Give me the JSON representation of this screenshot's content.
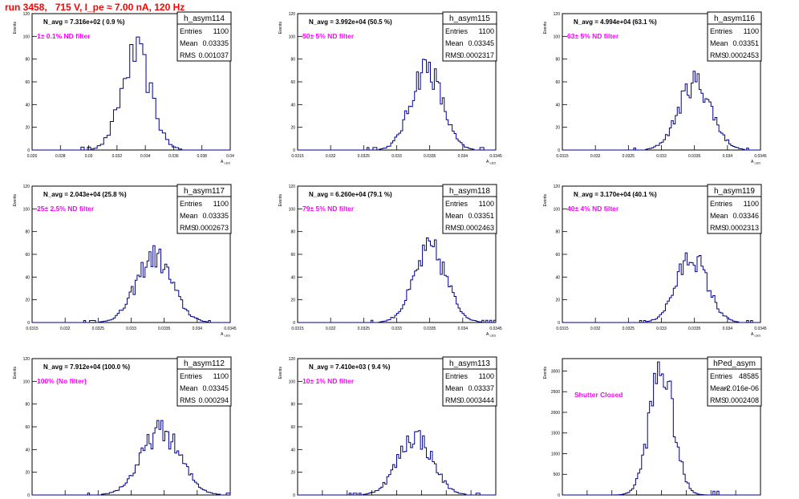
{
  "page_title": "run 3458,   715 V, I_pe ≈ 7.00 nA, 120 Hz",
  "colors": {
    "histogram": "#00008b",
    "label": "#ff00ff",
    "title": "#ff0000",
    "frame": "#000000"
  },
  "chart_data": [
    {
      "type": "histogram",
      "name": "h_asym114",
      "entries": "1100",
      "mean": "0.03335",
      "rms": "0.001037",
      "navg": "N_avg = 7.316e+02 ( 0.9 %)",
      "label": "1± 0.1% ND filter",
      "ylabel": "Events",
      "xlabel": "A_LED",
      "xlim": [
        0.026,
        0.04
      ],
      "ylim": [
        0,
        120
      ],
      "xticks": [
        "0.026",
        "0.028",
        "0.03",
        "0.032",
        "0.034",
        "0.036",
        "0.038",
        "0.04"
      ],
      "yticks": [
        "0",
        "20",
        "40",
        "60",
        "80",
        "100",
        "120"
      ],
      "bin_width": 0.00023,
      "mu": 0.03335,
      "sigma": 0.001037,
      "peak": 84
    },
    {
      "type": "histogram",
      "name": "h_asym115",
      "entries": "1100",
      "mean": "0.03345",
      "rms": "0.0002317",
      "navg": "N_avg = 3.992e+04 (50.5 %)",
      "label": "50± 5% ND filter",
      "ylabel": "Events",
      "xlabel": "A_LED",
      "xlim": [
        0.0315,
        0.0345
      ],
      "ylim": [
        0,
        120
      ],
      "xticks": [
        "0.0315",
        "0.032",
        "0.0325",
        "0.033",
        "0.0335",
        "0.034",
        "0.0345"
      ],
      "yticks": [
        "0",
        "20",
        "40",
        "60",
        "80",
        "100",
        "120"
      ],
      "bin_width": 3e-05,
      "mu": 0.03345,
      "sigma": 0.0002317,
      "peak": 73
    },
    {
      "type": "histogram",
      "name": "h_asym116",
      "entries": "1100",
      "mean": "0.03351",
      "rms": "0.0002453",
      "navg": "N_avg = 4.994e+04 (63.1 %)",
      "label": "63± 5% ND filter",
      "ylabel": "Events",
      "xlabel": "A_LED",
      "xlim": [
        0.0315,
        0.0345
      ],
      "ylim": [
        0,
        120
      ],
      "xticks": [
        "0.0315",
        "0.032",
        "0.0325",
        "0.033",
        "0.0335",
        "0.034",
        "0.0345"
      ],
      "yticks": [
        "0",
        "20",
        "40",
        "60",
        "80",
        "100",
        "120"
      ],
      "bin_width": 3e-05,
      "mu": 0.03351,
      "sigma": 0.0002453,
      "peak": 60
    },
    {
      "type": "histogram",
      "name": "h_asym117",
      "entries": "1100",
      "mean": "0.03335",
      "rms": "0.0002673",
      "navg": "N_avg = 2.043e+04 (25.8 %)",
      "label": "25± 2.5% ND filter",
      "ylabel": "Events",
      "xlabel": "A_LED",
      "xlim": [
        0.0315,
        0.0345
      ],
      "ylim": [
        0,
        120
      ],
      "xticks": [
        "0.0315",
        "0.032",
        "0.0325",
        "0.033",
        "0.0335",
        "0.034",
        "0.0345"
      ],
      "yticks": [
        "0",
        "20",
        "40",
        "60",
        "80",
        "100",
        "120"
      ],
      "bin_width": 3e-05,
      "mu": 0.03335,
      "sigma": 0.0002673,
      "peak": 58
    },
    {
      "type": "histogram",
      "name": "h_asym118",
      "entries": "1100",
      "mean": "0.03351",
      "rms": "0.0002463",
      "navg": "N_avg = 6.260e+04 (79.1 %)",
      "label": "79± 5% ND filter",
      "ylabel": "Events",
      "xlabel": "A_LED",
      "xlim": [
        0.0315,
        0.0345
      ],
      "ylim": [
        0,
        120
      ],
      "xticks": [
        "0.0315",
        "0.032",
        "0.0325",
        "0.033",
        "0.0335",
        "0.034",
        "0.0345"
      ],
      "yticks": [
        "0",
        "20",
        "40",
        "60",
        "80",
        "100",
        "120"
      ],
      "bin_width": 3e-05,
      "mu": 0.03351,
      "sigma": 0.0002463,
      "peak": 64
    },
    {
      "type": "histogram",
      "name": "h_asym119",
      "entries": "1100",
      "mean": "0.03346",
      "rms": "0.0002313",
      "navg": "N_avg = 3.170e+04 (40.1 %)",
      "label": "40± 4% ND filter",
      "ylabel": "Events",
      "xlabel": "A_LED",
      "xlim": [
        0.0315,
        0.0345
      ],
      "ylim": [
        0,
        120
      ],
      "xticks": [
        "0.0315",
        "0.032",
        "0.0325",
        "0.033",
        "0.0335",
        "0.034",
        "0.0345"
      ],
      "yticks": [
        "0",
        "20",
        "40",
        "60",
        "80",
        "100",
        "120"
      ],
      "bin_width": 3e-05,
      "mu": 0.03346,
      "sigma": 0.0002313,
      "peak": 58
    },
    {
      "type": "histogram",
      "name": "h_asym112",
      "entries": "1100",
      "mean": "0.03345",
      "rms": "0.000294",
      "navg": "N_avg = 7.912e+04 (100.0 %)",
      "label": "100% (No filter)",
      "ylabel": "Events",
      "xlabel": "A_LED",
      "xlim": [
        0.0315,
        0.0345
      ],
      "ylim": [
        0,
        120
      ],
      "xticks": [
        "0.0315",
        "0.032",
        "0.0325",
        "0.033",
        "0.0335",
        "0.034",
        "0.0345"
      ],
      "yticks": [
        "0",
        "20",
        "40",
        "60",
        "80",
        "100",
        "120"
      ],
      "bin_width": 3e-05,
      "mu": 0.03345,
      "sigma": 0.000294,
      "peak": 56
    },
    {
      "type": "histogram",
      "name": "h_asym113",
      "entries": "1100",
      "mean": "0.03337",
      "rms": "0.0003444",
      "navg": "N_avg = 7.410e+03 ( 9.4 %)",
      "label": "10± 1% ND filter",
      "ylabel": "Events",
      "xlabel": "A_LED",
      "xlim": [
        0.031,
        0.035
      ],
      "ylim": [
        0,
        120
      ],
      "xticks": [
        "0.031",
        "0.0315",
        "0.032",
        "0.0325",
        "0.033",
        "0.0335",
        "0.034",
        "0.0345",
        "0.035"
      ],
      "yticks": [
        "0",
        "20",
        "40",
        "60",
        "80",
        "100",
        "120"
      ],
      "bin_width": 4e-05,
      "mu": 0.03337,
      "sigma": 0.0003444,
      "peak": 52
    },
    {
      "type": "histogram",
      "name": "hPed_asym",
      "entries": "48585",
      "mean": "-2.016e-06",
      "rms": "0.0002408",
      "navg": "",
      "label": "Shutter Closed",
      "ylabel": "Events",
      "xlabel": "",
      "xlim": [
        -0.002,
        0.002
      ],
      "ylim": [
        0,
        3300
      ],
      "xticks": [
        "-0.002",
        "-0.0015",
        "-0.001",
        "-0.0005",
        "0",
        "0.0005",
        "0.001",
        "0.0015",
        "0.002"
      ],
      "yticks": [
        "0",
        "500",
        "1000",
        "1500",
        "2000",
        "2500",
        "3000"
      ],
      "bin_width": 4e-05,
      "mu": 0.0,
      "sigma": 0.0002408,
      "peak": 3060
    }
  ]
}
